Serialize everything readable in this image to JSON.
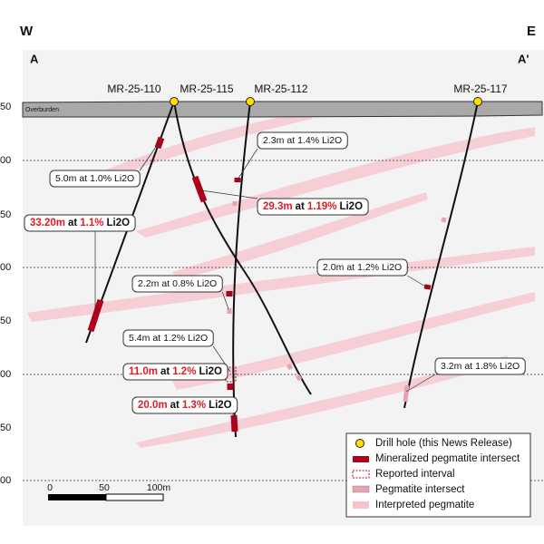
{
  "header": {
    "west": "W",
    "east": "E"
  },
  "section": {
    "start": "A",
    "end": "A'"
  },
  "elevation_labels": [
    "50",
    "00",
    "50",
    "00",
    "50",
    "00",
    "50",
    "00"
  ],
  "overburden": "Overburden",
  "drill_holes": [
    "MR-25-110",
    "MR-25-115",
    "MR-25-112",
    "MR-25-117"
  ],
  "intersects": [
    {
      "length": "5.0m",
      "at": "at",
      "grade": "1.0%",
      "unit": "Li2O",
      "highlight": false
    },
    {
      "length": "33.20m",
      "at": "at",
      "grade": "1.1%",
      "unit": "Li2O",
      "highlight": true
    },
    {
      "length": "2.3m",
      "at": "at",
      "grade": "1.4%",
      "unit": "Li2O",
      "highlight": false
    },
    {
      "length": "29.3m",
      "at": "at",
      "grade": "1.19%",
      "unit": "Li2O",
      "highlight": true
    },
    {
      "length": "2.2m",
      "at": "at",
      "grade": "0.8%",
      "unit": "Li2O",
      "highlight": false
    },
    {
      "length": "5.4m",
      "at": "at",
      "grade": "1.2%",
      "unit": "Li2O",
      "highlight": false
    },
    {
      "length": "11.0m",
      "at": "at",
      "grade": "1.2%",
      "unit": "Li2O",
      "highlight": true
    },
    {
      "length": "20.0m",
      "at": "at",
      "grade": "1.3%",
      "unit": "Li2O",
      "highlight": true
    },
    {
      "length": "2.0m",
      "at": "at",
      "grade": "1.2%",
      "unit": "Li2O",
      "highlight": false
    },
    {
      "length": "3.2m",
      "at": "at",
      "grade": "1.8%",
      "unit": "Li2O",
      "highlight": false
    }
  ],
  "legend": [
    "Drill hole (this News Release)",
    "Mineralized pegmatite intersect",
    "Reported interval",
    "Pegmatite intersect",
    "Interpreted pegmatite"
  ],
  "scale": {
    "labels": [
      "0",
      "50",
      "100m"
    ]
  }
}
